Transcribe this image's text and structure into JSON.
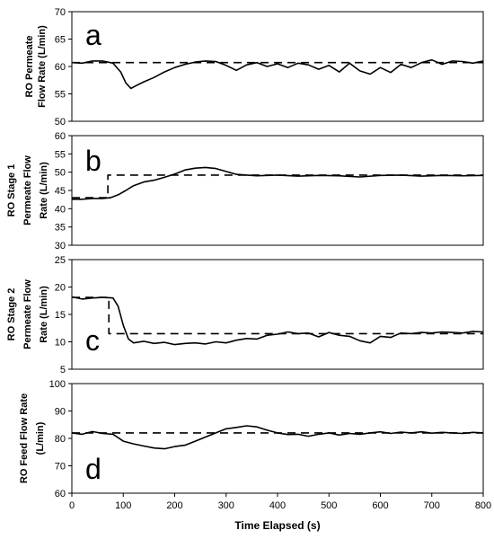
{
  "chart_data": [
    {
      "type": "line",
      "panel_label": "a",
      "ylabel": [
        "RO Permeate",
        "Flow Rate (L/min)"
      ],
      "ylim": [
        50,
        70
      ],
      "yticks": [
        50,
        55,
        60,
        65,
        70
      ],
      "xlim": [
        0,
        800
      ],
      "grid": false,
      "series": [
        {
          "style": "solid",
          "x": [
            0,
            20,
            40,
            60,
            80,
            95,
            105,
            115,
            125,
            140,
            160,
            180,
            200,
            220,
            240,
            260,
            280,
            300,
            320,
            340,
            360,
            380,
            400,
            420,
            440,
            460,
            480,
            500,
            520,
            540,
            560,
            580,
            600,
            620,
            640,
            660,
            680,
            700,
            720,
            740,
            760,
            780,
            800
          ],
          "y": [
            60.7,
            60.6,
            61.0,
            61.0,
            60.6,
            59.0,
            57.0,
            56.0,
            56.5,
            57.2,
            58.0,
            59.0,
            59.8,
            60.4,
            60.8,
            61.0,
            60.9,
            60.2,
            59.3,
            60.3,
            60.7,
            60.0,
            60.5,
            59.8,
            60.6,
            60.3,
            59.5,
            60.2,
            59.0,
            60.6,
            59.2,
            58.6,
            59.8,
            58.9,
            60.4,
            59.8,
            60.7,
            61.2,
            60.4,
            61.0,
            60.9,
            60.6,
            61.0
          ]
        },
        {
          "style": "dashed",
          "x": [
            0,
            800
          ],
          "y": [
            60.7,
            60.7
          ]
        }
      ]
    },
    {
      "type": "line",
      "panel_label": "b",
      "ylabel": [
        "RO Stage 1",
        "Permeate Flow",
        "Rate (L/min)"
      ],
      "ylim": [
        30,
        60
      ],
      "yticks": [
        30,
        35,
        40,
        45,
        50,
        55,
        60
      ],
      "xlim": [
        0,
        800
      ],
      "grid": false,
      "series": [
        {
          "style": "solid",
          "x": [
            0,
            20,
            40,
            60,
            75,
            90,
            105,
            120,
            140,
            160,
            180,
            200,
            220,
            240,
            260,
            280,
            300,
            320,
            340,
            360,
            380,
            400,
            440,
            480,
            520,
            560,
            600,
            640,
            680,
            720,
            760,
            800
          ],
          "y": [
            42.6,
            42.6,
            42.8,
            42.8,
            43.0,
            43.8,
            45.0,
            46.3,
            47.3,
            47.8,
            48.6,
            49.5,
            50.6,
            51.1,
            51.3,
            51.0,
            50.2,
            49.4,
            49.2,
            49.0,
            49.1,
            49.2,
            48.9,
            49.1,
            49.0,
            48.7,
            49.1,
            49.2,
            48.9,
            49.1,
            49.0,
            49.1
          ]
        },
        {
          "style": "dashed",
          "x": [
            0,
            70,
            70,
            800
          ],
          "y": [
            43.0,
            43.0,
            49.2,
            49.2
          ]
        }
      ]
    },
    {
      "type": "line",
      "panel_label": "c",
      "ylabel": [
        "RO Stage 2",
        "Permeate Flow",
        "Rate (L/min)"
      ],
      "ylim": [
        5,
        25
      ],
      "yticks": [
        5,
        10,
        15,
        20,
        25
      ],
      "xlim": [
        0,
        800
      ],
      "grid": false,
      "series": [
        {
          "style": "solid",
          "x": [
            0,
            20,
            40,
            60,
            80,
            90,
            100,
            110,
            120,
            140,
            160,
            180,
            200,
            220,
            240,
            260,
            280,
            300,
            320,
            340,
            360,
            380,
            400,
            420,
            440,
            460,
            480,
            500,
            520,
            540,
            560,
            580,
            600,
            620,
            640,
            660,
            680,
            700,
            720,
            740,
            760,
            780,
            800
          ],
          "y": [
            18.2,
            17.8,
            18.0,
            18.1,
            18.0,
            16.5,
            13.0,
            10.5,
            9.8,
            10.1,
            9.7,
            9.9,
            9.5,
            9.7,
            9.8,
            9.6,
            10.0,
            9.8,
            10.3,
            10.6,
            10.5,
            11.2,
            11.4,
            11.8,
            11.5,
            11.6,
            10.9,
            11.7,
            11.2,
            11.0,
            10.2,
            9.8,
            11.0,
            10.8,
            11.6,
            11.5,
            11.7,
            11.6,
            11.8,
            11.7,
            11.6,
            11.9,
            11.8
          ]
        },
        {
          "style": "dashed",
          "x": [
            0,
            72,
            72,
            800
          ],
          "y": [
            18.1,
            18.1,
            11.5,
            11.5
          ]
        }
      ]
    },
    {
      "type": "line",
      "panel_label": "d",
      "ylabel": [
        "RO Feed Flow Rate",
        "(L/min)"
      ],
      "ylim": [
        60,
        100
      ],
      "yticks": [
        60,
        70,
        80,
        90,
        100
      ],
      "xlim": [
        0,
        800
      ],
      "xticks": [
        0,
        100,
        200,
        300,
        400,
        500,
        600,
        700,
        800
      ],
      "xlabel": "Time Elapsed (s)",
      "grid": false,
      "series": [
        {
          "style": "solid",
          "x": [
            0,
            20,
            40,
            60,
            80,
            100,
            120,
            140,
            160,
            180,
            200,
            220,
            240,
            260,
            280,
            300,
            320,
            340,
            360,
            380,
            400,
            420,
            440,
            460,
            480,
            500,
            520,
            540,
            560,
            580,
            600,
            620,
            640,
            660,
            680,
            700,
            720,
            740,
            760,
            780,
            800
          ],
          "y": [
            82.0,
            81.5,
            82.5,
            81.8,
            81.5,
            79.0,
            78.0,
            77.2,
            76.5,
            76.2,
            77.0,
            77.5,
            79.0,
            80.5,
            82.0,
            83.5,
            84.0,
            84.6,
            84.2,
            83.0,
            82.0,
            81.4,
            81.5,
            80.8,
            81.5,
            82.0,
            81.2,
            81.8,
            81.5,
            82.0,
            82.4,
            81.8,
            82.3,
            82.0,
            82.4,
            81.9,
            82.2,
            82.0,
            81.8,
            82.2,
            82.0
          ]
        },
        {
          "style": "dashed",
          "x": [
            0,
            800
          ],
          "y": [
            82.0,
            82.0
          ]
        }
      ]
    }
  ]
}
